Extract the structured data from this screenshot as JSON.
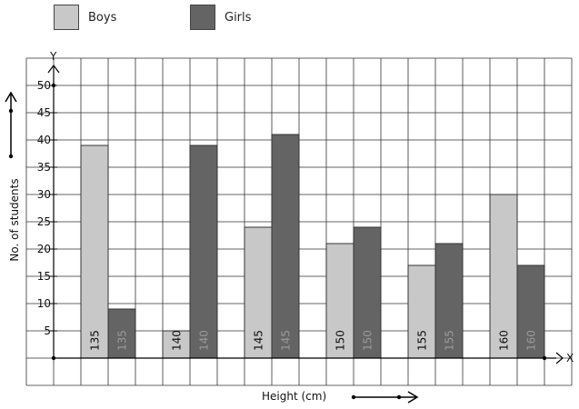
{
  "legend": [
    {
      "name": "Boys",
      "color": "#c8c8c8"
    },
    {
      "name": "Girls",
      "color": "#646464"
    }
  ],
  "axis_letters": {
    "x": "X",
    "y": "Y"
  },
  "chart_data": {
    "type": "bar",
    "categories": [
      "135",
      "140",
      "145",
      "150",
      "155",
      "160"
    ],
    "series": [
      {
        "name": "Boys",
        "values": [
          39,
          5,
          24,
          21,
          17,
          30
        ],
        "color": "#c8c8c8"
      },
      {
        "name": "Girls",
        "values": [
          9,
          39,
          41,
          24,
          21,
          17
        ],
        "color": "#646464"
      }
    ],
    "title": "",
    "xlabel": "Height (cm)",
    "ylabel": "No. of students",
    "ylim": [
      0,
      50
    ],
    "yticks": [
      "5",
      "10",
      "15",
      "20",
      "25",
      "30",
      "35",
      "40",
      "45",
      "50"
    ],
    "grid": true,
    "legend_position": "top-left"
  }
}
